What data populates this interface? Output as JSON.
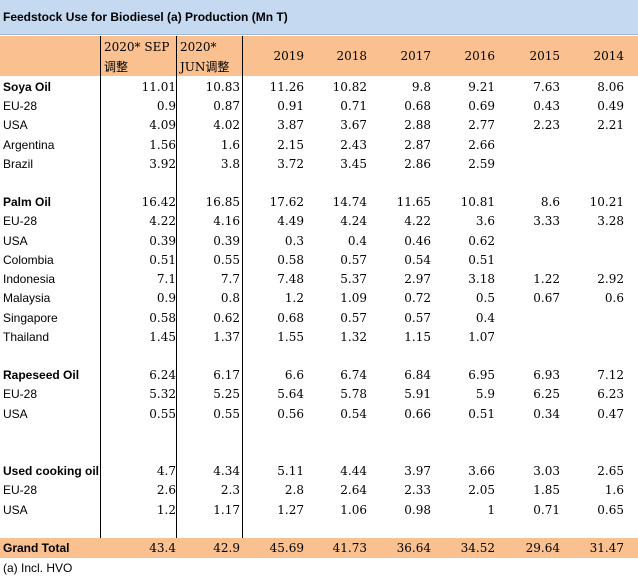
{
  "title": "Feedstock Use for Biodiesel (a) Production (Mn T)",
  "headers": {
    "sep_line1": "2020* SEP",
    "sep_line2": "调整",
    "jun_line1": "2020*",
    "jun_line2": "JUN调整",
    "years": [
      "2019",
      "2018",
      "2017",
      "2016",
      "2015",
      "2014"
    ]
  },
  "rows": [
    {
      "label": "Soya Oil",
      "bold": true,
      "values": [
        "11.01",
        "10.83",
        "11.26",
        "10.82",
        "9.8",
        "9.21",
        "7.63",
        "8.06"
      ]
    },
    {
      "label": "EU-28",
      "values": [
        "0.9",
        "0.87",
        "0.91",
        "0.71",
        "0.68",
        "0.69",
        "0.43",
        "0.49"
      ]
    },
    {
      "label": "USA",
      "values": [
        "4.09",
        "4.02",
        "3.87",
        "3.67",
        "2.88",
        "2.77",
        "2.23",
        "2.21"
      ]
    },
    {
      "label": "Argentina",
      "values": [
        "1.56",
        "1.6",
        "2.15",
        "2.43",
        "2.87",
        "2.66",
        "",
        ""
      ]
    },
    {
      "label": "Brazil",
      "values": [
        "3.92",
        "3.8",
        "3.72",
        "3.45",
        "2.86",
        "2.59",
        "",
        ""
      ]
    },
    {
      "label": "Palm Oil",
      "bold": true,
      "values": [
        "16.42",
        "16.85",
        "17.62",
        "14.74",
        "11.65",
        "10.81",
        "8.6",
        "10.21"
      ]
    },
    {
      "label": "EU-28",
      "values": [
        "4.22",
        "4.16",
        "4.49",
        "4.24",
        "4.22",
        "3.6",
        "3.33",
        "3.28"
      ]
    },
    {
      "label": "USA",
      "values": [
        "0.39",
        "0.39",
        "0.3",
        "0.4",
        "0.46",
        "0.62",
        "",
        ""
      ]
    },
    {
      "label": "Colombia",
      "values": [
        "0.51",
        "0.55",
        "0.58",
        "0.57",
        "0.54",
        "0.51",
        "",
        ""
      ]
    },
    {
      "label": "Indonesia",
      "values": [
        "7.1",
        "7.7",
        "7.48",
        "5.37",
        "2.97",
        "3.18",
        "1.22",
        "2.92"
      ]
    },
    {
      "label": "Malaysia",
      "values": [
        "0.9",
        "0.8",
        "1.2",
        "1.09",
        "0.72",
        "0.5",
        "0.67",
        "0.6"
      ]
    },
    {
      "label": "Singapore",
      "values": [
        "0.58",
        "0.62",
        "0.68",
        "0.57",
        "0.57",
        "0.4",
        "",
        ""
      ]
    },
    {
      "label": "Thailand",
      "values": [
        "1.45",
        "1.37",
        "1.55",
        "1.32",
        "1.15",
        "1.07",
        "",
        ""
      ]
    },
    {
      "label": "Rapeseed Oil",
      "bold": true,
      "values": [
        "6.24",
        "6.17",
        "6.6",
        "6.74",
        "6.84",
        "6.95",
        "6.93",
        "7.12"
      ]
    },
    {
      "label": "EU-28",
      "values": [
        "5.32",
        "5.25",
        "5.64",
        "5.78",
        "5.91",
        "5.9",
        "6.25",
        "6.23"
      ]
    },
    {
      "label": "USA",
      "values": [
        "0.55",
        "0.55",
        "0.56",
        "0.54",
        "0.66",
        "0.51",
        "0.34",
        "0.47"
      ]
    },
    {
      "label": "Used cooking oil",
      "bold": true,
      "values": [
        "4.7",
        "4.34",
        "5.11",
        "4.44",
        "3.97",
        "3.66",
        "3.03",
        "2.65"
      ]
    },
    {
      "label": "EU-28",
      "values": [
        "2.6",
        "2.3",
        "2.8",
        "2.64",
        "2.33",
        "2.05",
        "1.85",
        "1.6"
      ]
    },
    {
      "label": "USA",
      "values": [
        "1.2",
        "1.17",
        "1.27",
        "1.06",
        "0.98",
        "1",
        "0.71",
        "0.65"
      ]
    }
  ],
  "total": {
    "label": "Grand Total",
    "values": [
      "43.4",
      "42.9",
      "45.69",
      "41.73",
      "36.64",
      "34.52",
      "29.64",
      "31.47"
    ]
  },
  "footnote": "(a) Incl. HVO"
}
